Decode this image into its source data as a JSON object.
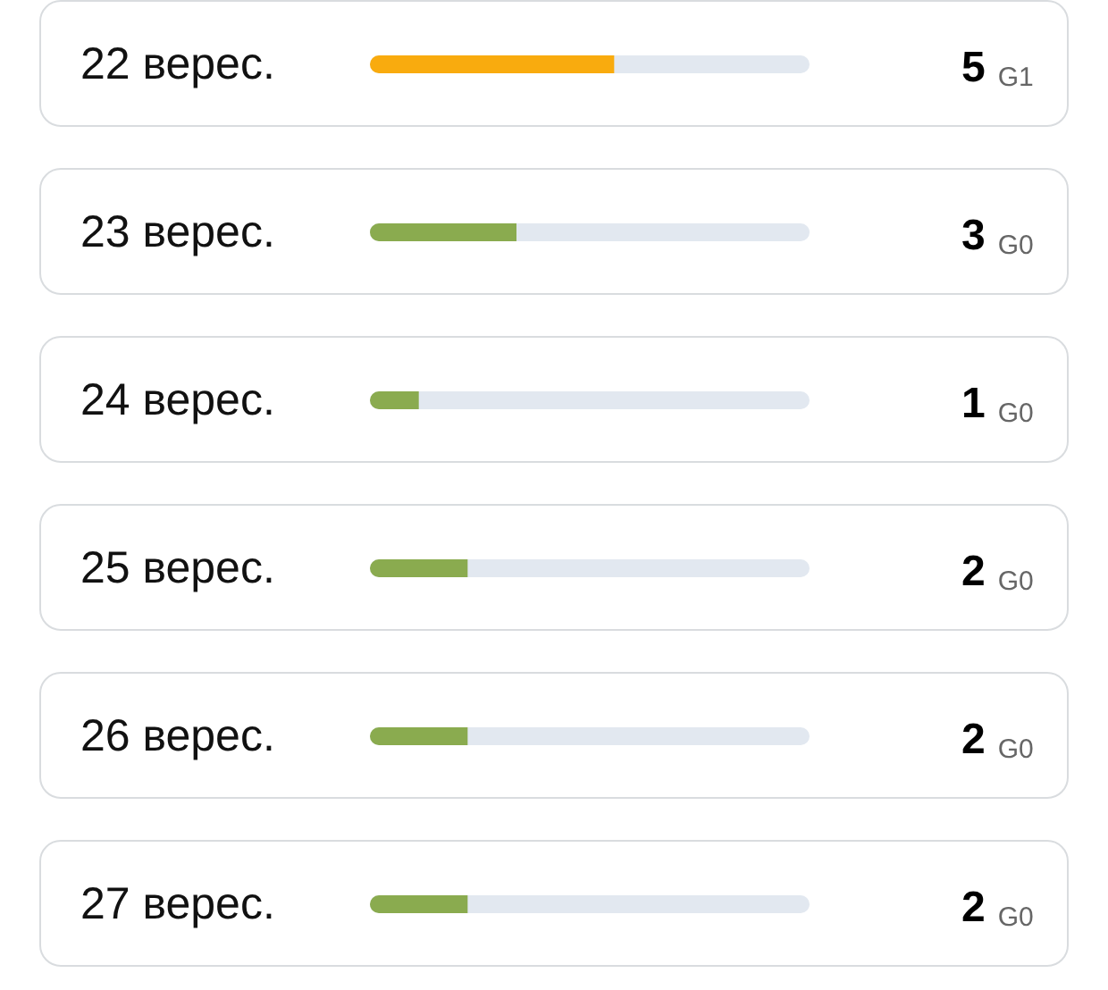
{
  "chart_data": {
    "type": "bar",
    "orientation": "horizontal",
    "categories": [
      "22 верес.",
      "23 верес.",
      "24 верес.",
      "25 верес.",
      "26 верес.",
      "27 верес."
    ],
    "values": [
      5,
      3,
      1,
      2,
      2,
      2
    ],
    "colors": [
      "#f9ab0e",
      "#8aab4f",
      "#8aab4f",
      "#8aab4f",
      "#8aab4f",
      "#8aab4f"
    ],
    "value_labels": [
      "5$_{G1}$",
      "3$_{G0}$",
      "1$_{G0}$",
      "2$_{G0}$",
      "2$_{G0}$",
      "2$_{G0}$"
    ],
    "xlim": [
      0,
      9
    ]
  }
}
